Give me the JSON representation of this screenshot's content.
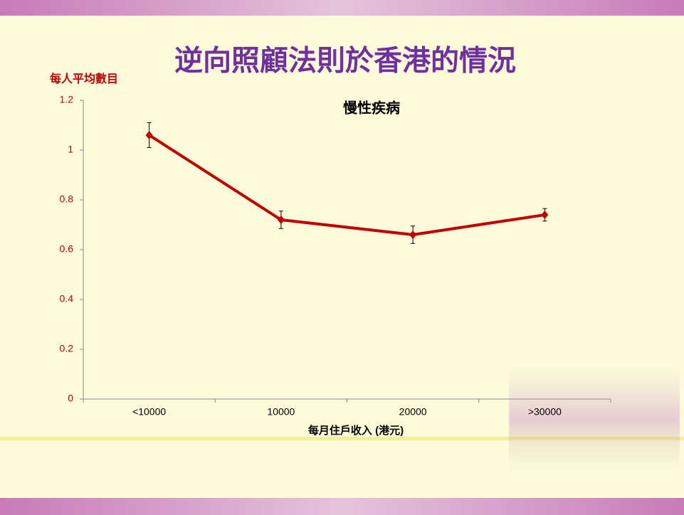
{
  "chart_data": {
    "type": "line",
    "title": "逆向照顧法則於香港的情況",
    "subtitle": "慢性疾病",
    "y_label": "每人平均數目",
    "x_label": "每月住戶收入 (港元)",
    "categories": [
      "<10000",
      "10000",
      "20000",
      ">30000"
    ],
    "series": [
      {
        "name": "慢性疾病",
        "color": "#c00000",
        "values": [
          1.06,
          0.72,
          0.66,
          0.74
        ],
        "errors": [
          0.05,
          0.035,
          0.035,
          0.025
        ]
      }
    ],
    "ylim": [
      0,
      1.2
    ],
    "yticks": [
      0,
      0.2,
      0.4,
      0.6,
      0.8,
      1,
      1.2
    ],
    "grid": false
  }
}
